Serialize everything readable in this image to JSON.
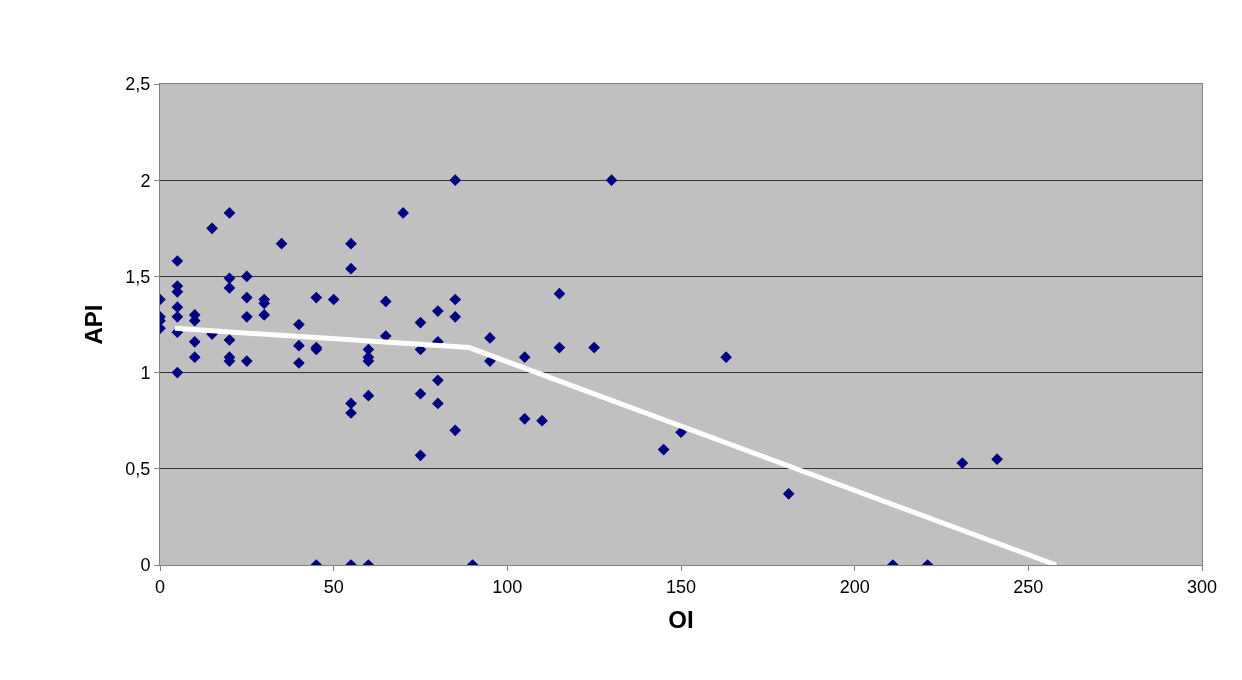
{
  "chart_data": {
    "type": "scatter",
    "xlabel": "OI",
    "ylabel": "API",
    "xlim": [
      0,
      300
    ],
    "xticks": [
      0,
      50,
      100,
      150,
      200,
      250,
      300
    ],
    "ylim": [
      0,
      2.5
    ],
    "yticks": [
      0,
      {
        "value": 0.5,
        "label": "0,5"
      },
      1,
      {
        "value": 1.5,
        "label": "1,5"
      },
      2,
      {
        "value": 2.5,
        "label": "2,5"
      }
    ],
    "grid": "y",
    "series": [
      {
        "marker": "diamond",
        "color": "#000080",
        "x": [
          0,
          0,
          0,
          0,
          5,
          5,
          5,
          5,
          5,
          5,
          5,
          10,
          10,
          10,
          10,
          15,
          15,
          20,
          20,
          20,
          20,
          20,
          20,
          25,
          25,
          25,
          25,
          30,
          30,
          30,
          35,
          40,
          40,
          40,
          45,
          45,
          45,
          45,
          50,
          55,
          55,
          55,
          55,
          55,
          60,
          60,
          60,
          60,
          60,
          65,
          65,
          70,
          75,
          75,
          75,
          75,
          80,
          80,
          80,
          80,
          85,
          85,
          85,
          85,
          90,
          95,
          95,
          105,
          105,
          110,
          115,
          115,
          125,
          130,
          145,
          150,
          163,
          181,
          211,
          221,
          231,
          241
        ],
        "values": [
          1.38,
          1.29,
          1.27,
          1.23,
          1.58,
          1.45,
          1.42,
          1.34,
          1.29,
          1.21,
          1.0,
          1.3,
          1.27,
          1.16,
          1.08,
          1.75,
          1.2,
          1.83,
          1.49,
          1.44,
          1.17,
          1.08,
          1.06,
          1.5,
          1.39,
          1.29,
          1.06,
          1.38,
          1.36,
          1.3,
          1.67,
          1.25,
          1.14,
          1.05,
          1.39,
          1.13,
          1.12,
          0,
          1.38,
          1.67,
          1.54,
          0.84,
          0.79,
          0,
          1.12,
          1.08,
          1.06,
          0.88,
          0,
          1.37,
          1.19,
          1.83,
          1.26,
          1.12,
          0.89,
          0.57,
          1.32,
          1.16,
          0.96,
          0.84,
          2.0,
          1.38,
          1.29,
          0.7,
          0,
          1.18,
          1.06,
          1.08,
          0.76,
          0.75,
          1.41,
          1.13,
          1.13,
          2.0,
          0.6,
          0.69,
          1.08,
          0.37,
          0,
          0,
          0.53,
          0.55
        ]
      },
      {
        "type": "line",
        "marker": "none",
        "color": "#ffffff",
        "x": [
          4.3,
          89,
          258
        ],
        "values": [
          1.23,
          1.13,
          0
        ]
      }
    ]
  }
}
